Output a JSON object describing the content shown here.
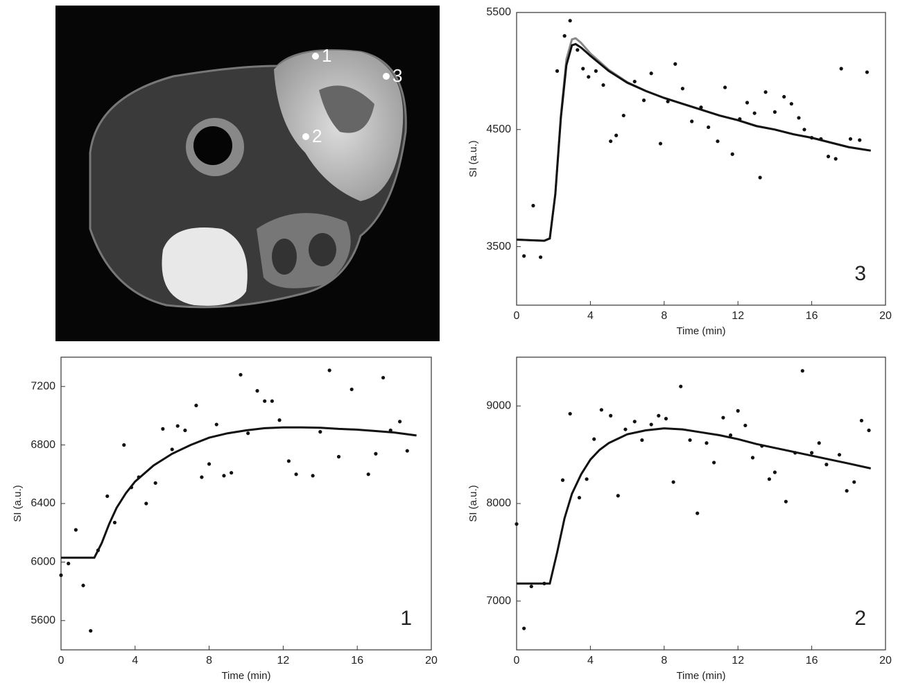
{
  "image_labels": [
    "1",
    "2",
    "3"
  ],
  "chart_data": [
    {
      "type": "line",
      "panel_label": "3",
      "xlabel": "Time (min)",
      "ylabel": "SI (a.u.)",
      "xlim": [
        0,
        20
      ],
      "xticks": [
        0,
        4,
        8,
        12,
        16,
        20
      ],
      "ylim": [
        3000,
        5500
      ],
      "yticks": [
        3500,
        4500,
        5500
      ],
      "series": [
        {
          "style": "line",
          "color": "#888888",
          "x": [
            0,
            1.5,
            1.8,
            2.1,
            2.4,
            2.7,
            3,
            3.2,
            3.5,
            4,
            5,
            6,
            7,
            8,
            9,
            10,
            11,
            12,
            13,
            14,
            15,
            16,
            17,
            18,
            19.2
          ],
          "values": [
            3560,
            3550,
            3570,
            3950,
            4620,
            5100,
            5270,
            5280,
            5240,
            5150,
            5010,
            4905,
            4830,
            4770,
            4720,
            4670,
            4620,
            4580,
            4530,
            4500,
            4460,
            4430,
            4390,
            4350,
            4320
          ]
        },
        {
          "style": "line",
          "color": "#111111",
          "x": [
            0,
            1.5,
            1.8,
            2.1,
            2.4,
            2.7,
            3,
            3.2,
            3.5,
            4,
            5,
            6,
            7,
            8,
            9,
            10,
            11,
            12,
            13,
            14,
            15,
            16,
            17,
            18,
            19.2
          ],
          "values": [
            3560,
            3550,
            3570,
            3950,
            4600,
            5050,
            5220,
            5230,
            5200,
            5130,
            5000,
            4900,
            4830,
            4770,
            4720,
            4670,
            4620,
            4580,
            4530,
            4500,
            4460,
            4430,
            4390,
            4350,
            4320
          ]
        },
        {
          "style": "dots",
          "color": "#111111",
          "x": [
            0.4,
            0.9,
            1.3,
            2.2,
            2.6,
            2.9,
            3.3,
            3.6,
            3.9,
            4.3,
            4.7,
            5.1,
            5.4,
            5.8,
            6.4,
            6.9,
            7.3,
            7.8,
            8.2,
            8.6,
            9,
            9.5,
            10,
            10.4,
            10.9,
            11.3,
            11.7,
            12.1,
            12.5,
            12.9,
            13.2,
            13.5,
            14,
            14.5,
            14.9,
            15.3,
            15.6,
            16,
            16.5,
            16.9,
            17.3,
            17.6,
            18.1,
            18.6,
            19
          ],
          "values": [
            3420,
            3850,
            3410,
            5000,
            5300,
            5430,
            5180,
            5020,
            4950,
            5000,
            4880,
            4400,
            4450,
            4620,
            4910,
            4750,
            4980,
            4380,
            4740,
            5060,
            4850,
            4570,
            4690,
            4520,
            4400,
            4860,
            4290,
            4590,
            4730,
            4640,
            4090,
            4820,
            4650,
            4780,
            4720,
            4600,
            4500,
            4430,
            4420,
            4270,
            4250,
            5020,
            4420,
            4410,
            4990
          ]
        }
      ]
    },
    {
      "type": "line",
      "panel_label": "1",
      "xlabel": "Time (min)",
      "ylabel": "SI (a.u.)",
      "xlim": [
        0,
        20
      ],
      "xticks": [
        0,
        4,
        8,
        12,
        16,
        20
      ],
      "ylim": [
        5400,
        7400
      ],
      "yticks": [
        5600,
        6000,
        6400,
        6800,
        7200
      ],
      "series": [
        {
          "style": "line",
          "color": "#111111",
          "x": [
            0,
            1.8,
            2.2,
            2.6,
            3,
            3.5,
            4,
            5,
            6,
            7,
            8,
            9,
            10,
            11,
            12,
            13,
            14,
            15,
            16,
            17,
            18,
            19.2
          ],
          "values": [
            6030,
            6030,
            6130,
            6260,
            6370,
            6470,
            6550,
            6660,
            6740,
            6800,
            6850,
            6880,
            6900,
            6915,
            6920,
            6920,
            6918,
            6910,
            6905,
            6895,
            6885,
            6865
          ]
        },
        {
          "style": "dots",
          "color": "#111111",
          "x": [
            0,
            0.4,
            0.8,
            1.2,
            1.6,
            2,
            2.5,
            2.9,
            3.4,
            3.8,
            4.2,
            4.6,
            5.1,
            5.5,
            6,
            6.3,
            6.7,
            7.3,
            7.6,
            8,
            8.4,
            8.8,
            9.2,
            9.7,
            10.1,
            10.6,
            11,
            11.4,
            11.8,
            12.3,
            12.7,
            13.6,
            14,
            14.5,
            15,
            15.7,
            16.6,
            17,
            17.4,
            17.8,
            18.3,
            18.7
          ],
          "values": [
            5910,
            5990,
            6220,
            5840,
            5530,
            6080,
            6450,
            6270,
            6800,
            6510,
            6580,
            6400,
            6540,
            6910,
            6770,
            6930,
            6900,
            7070,
            6580,
            6670,
            6940,
            6590,
            6610,
            7280,
            6880,
            7170,
            7100,
            7100,
            6970,
            6690,
            6600,
            6590,
            6890,
            7310,
            6720,
            7180,
            6600,
            6740,
            7260,
            6900,
            6960,
            6760
          ]
        }
      ]
    },
    {
      "type": "line",
      "panel_label": "2",
      "xlabel": "Time (min)",
      "ylabel": "SI (a.u.)",
      "xlim": [
        0,
        20
      ],
      "xticks": [
        0,
        4,
        8,
        12,
        16,
        20
      ],
      "ylim": [
        6500,
        9500
      ],
      "yticks": [
        7000,
        8000,
        9000
      ],
      "series": [
        {
          "style": "line",
          "color": "#111111",
          "x": [
            0,
            1.8,
            2.2,
            2.6,
            3,
            3.5,
            4,
            4.5,
            5,
            6,
            7,
            8,
            9,
            10,
            11,
            12,
            13,
            14,
            15,
            16,
            17,
            18,
            19.2
          ],
          "values": [
            7180,
            7180,
            7500,
            7850,
            8100,
            8300,
            8450,
            8550,
            8620,
            8710,
            8750,
            8770,
            8760,
            8730,
            8700,
            8660,
            8610,
            8570,
            8530,
            8490,
            8450,
            8410,
            8360
          ]
        },
        {
          "style": "dots",
          "color": "#111111",
          "x": [
            0,
            0.4,
            0.8,
            1.5,
            2.5,
            2.9,
            3.4,
            3.8,
            4.2,
            4.6,
            5.1,
            5.5,
            5.9,
            6.4,
            6.8,
            7.3,
            7.7,
            8.1,
            8.5,
            8.9,
            9.4,
            9.8,
            10.3,
            10.7,
            11.2,
            11.6,
            12,
            12.4,
            12.8,
            13.3,
            13.7,
            14,
            14.6,
            15.1,
            15.5,
            16,
            16.4,
            16.8,
            17.5,
            17.9,
            18.3,
            18.7,
            19.1
          ],
          "values": [
            7790,
            6720,
            7150,
            7180,
            8240,
            8920,
            8060,
            8250,
            8660,
            8960,
            8900,
            8080,
            8760,
            8840,
            8650,
            8810,
            8900,
            8870,
            8220,
            9200,
            8650,
            7900,
            8620,
            8420,
            8880,
            8700,
            8950,
            8800,
            8470,
            8590,
            8250,
            8320,
            8020,
            8520,
            9360,
            8520,
            8620,
            8400,
            8500,
            8130,
            8220,
            8850,
            8750
          ]
        }
      ]
    }
  ]
}
